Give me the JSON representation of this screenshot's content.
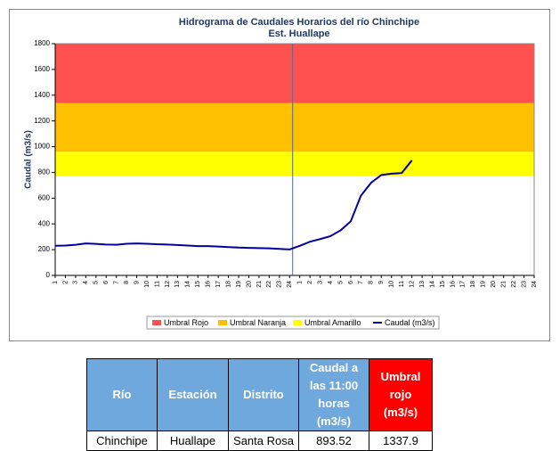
{
  "chart_data": {
    "type": "line",
    "title": "Hidrograma de Caudales Horarios del río Chinchipe",
    "subtitle": "Est. Huallape",
    "y_label": "Caudal (m3/s)",
    "categories": [
      "1",
      "2",
      "3",
      "4",
      "5",
      "6",
      "7",
      "8",
      "9",
      "10",
      "11",
      "12",
      "13",
      "14",
      "15",
      "16",
      "17",
      "18",
      "19",
      "20",
      "21",
      "22",
      "23",
      "24",
      "1",
      "2",
      "3",
      "4",
      "5",
      "6",
      "7",
      "8",
      "9",
      "10",
      "11",
      "12",
      "13",
      "14",
      "15",
      "16",
      "17",
      "18",
      "19",
      "20",
      "21",
      "22",
      "23",
      "24"
    ],
    "thresholds": [
      {
        "name": "Umbral Rojo",
        "color": "#ff5050",
        "value": 1337.9
      },
      {
        "name": "Umbral Naranja",
        "color": "#ffc000",
        "value": 960
      },
      {
        "name": "Umbral Amarillo",
        "color": "#ffff00",
        "value": 770
      }
    ],
    "series": [
      {
        "name": "Caudal (m3/s)",
        "color": "#0000a0",
        "values": [
          230,
          232,
          238,
          248,
          245,
          240,
          238,
          246,
          248,
          246,
          242,
          240,
          236,
          232,
          228,
          228,
          224,
          220,
          216,
          214,
          212,
          210,
          206,
          202,
          230,
          262,
          282,
          305,
          350,
          420,
          620,
          720,
          780,
          790,
          795,
          893.52,
          null,
          null,
          null,
          null,
          null,
          null,
          null,
          null,
          null,
          null,
          null,
          null
        ]
      }
    ],
    "ylim": [
      0,
      1800
    ],
    "yticks": [
      0,
      200,
      400,
      600,
      800,
      1000,
      1200,
      1400,
      1600,
      1800
    ]
  },
  "table": {
    "header": [
      "Río",
      "Estación",
      "Distrito",
      "Caudal a las 11:00 horas (m3/s)",
      "Umbral rojo (m3/s)"
    ],
    "rows": [
      [
        "Chinchipe",
        "Huallape",
        "Santa Rosa",
        "893.52",
        "1337.9"
      ]
    ]
  }
}
